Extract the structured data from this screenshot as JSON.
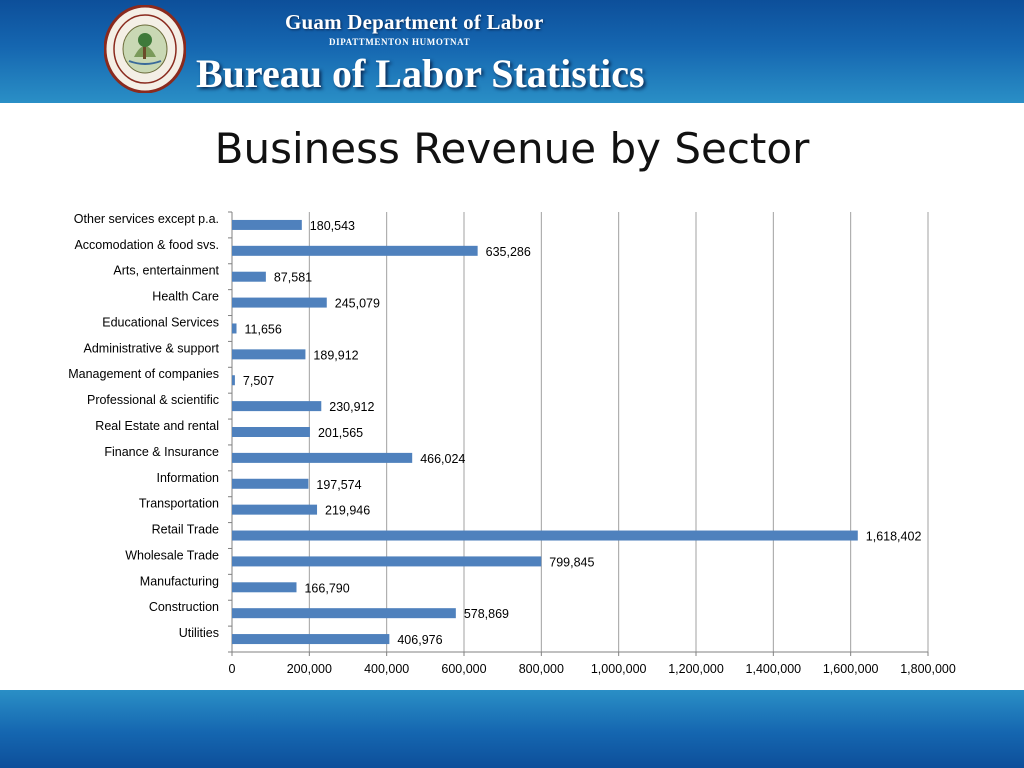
{
  "header": {
    "org_title": "Guam Department of Labor",
    "org_subtitle": "DIPATTMENTON HUMOTNAT",
    "bureau_title": "Bureau of Labor Statistics"
  },
  "colors": {
    "header_blue": "#1566b0",
    "bar_fill": "#4f81bd"
  },
  "chart_data": {
    "type": "bar",
    "orientation": "horizontal",
    "title": "Business Revenue by Sector",
    "categories": [
      "Other services except p.a.",
      "Accomodation & food svs.",
      "Arts, entertainment",
      "Health Care",
      "Educational Services",
      "Administrative & support",
      "Management of companies",
      "Professional & scientific",
      "Real Estate and rental",
      "Finance & Insurance",
      "Information",
      "Transportation",
      "Retail Trade",
      "Wholesale Trade",
      "Manufacturing",
      "Construction",
      "Utilities"
    ],
    "values": [
      180543,
      635286,
      87581,
      245079,
      11656,
      189912,
      7507,
      230912,
      201565,
      466024,
      197574,
      219946,
      1618402,
      799845,
      166790,
      578869,
      406976
    ],
    "value_labels": [
      "180,543",
      "635,286",
      "87,581",
      "245,079",
      "11,656",
      "189,912",
      "7,507",
      "230,912",
      "201,565",
      "466,024",
      "197,574",
      "219,946",
      "1,618,402",
      "799,845",
      "166,790",
      "578,869",
      "406,976"
    ],
    "xlim": [
      0,
      1800000
    ],
    "x_ticks": [
      0,
      200000,
      400000,
      600000,
      800000,
      1000000,
      1200000,
      1400000,
      1600000,
      1800000
    ],
    "x_tick_labels": [
      "0",
      "200,000",
      "400,000",
      "600,000",
      "800,000",
      "1,000,000",
      "1,200,000",
      "1,400,000",
      "1,600,000",
      "1,800,000"
    ],
    "grid": "vertical",
    "legend": "none"
  }
}
